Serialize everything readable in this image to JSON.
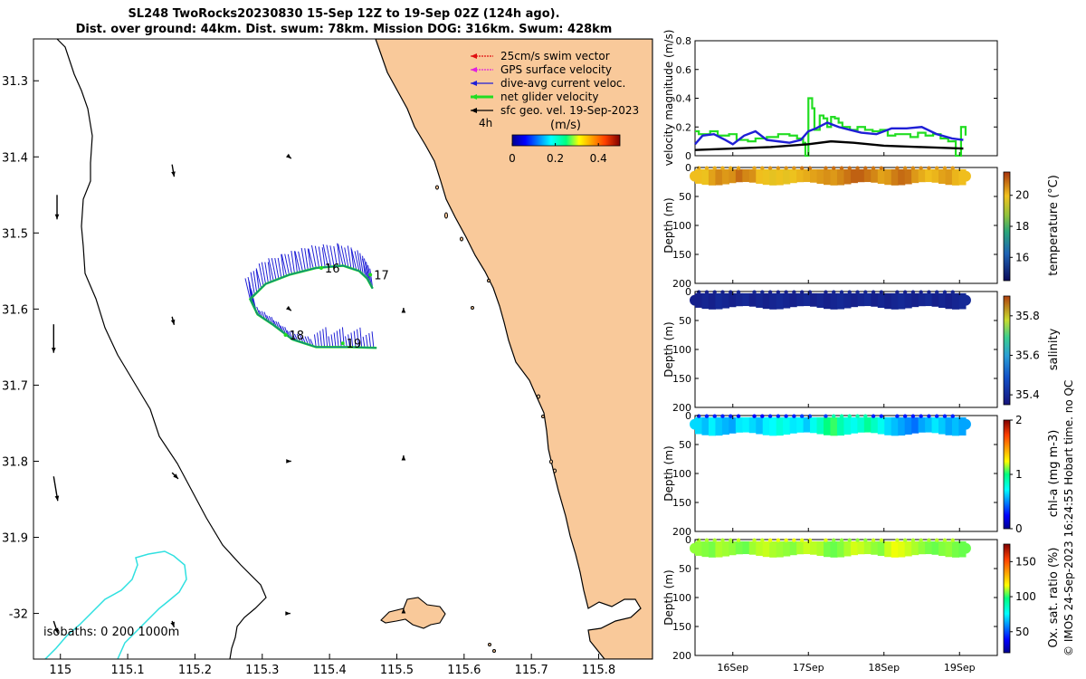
{
  "header": {
    "title_line1": "SL248 TwoRocks20230830 15-Sep 12Z to 19-Sep 02Z (124h ago).",
    "title_line2": "Dist. over ground: 44km. Dist. swum: 78km. Mission DOG: 316km. Swum: 428km"
  },
  "colors": {
    "land": "#f9c99a",
    "isobath_200": "#2fe0e0",
    "glider_track": "#22dd22",
    "current_arrow": "#1f1fd6",
    "swim_vector": "#e01010",
    "gps_velocity": "#e020e0"
  },
  "chart_data": [
    {
      "type": "map",
      "x_ticks": [
        "115",
        "115.1",
        "115.2",
        "115.3",
        "115.4",
        "115.5",
        "115.6",
        "115.7",
        "115.8"
      ],
      "y_ticks": [
        "31.3",
        "31.4",
        "31.5",
        "31.6",
        "31.7",
        "31.8",
        "31.9",
        "-32"
      ],
      "xlim": [
        114.96,
        115.88
      ],
      "ylim": [
        -32.06,
        -31.245
      ],
      "legend": [
        {
          "label": "25cm/s swim vector",
          "color": "#e01010"
        },
        {
          "label": "GPS surface velocity",
          "color": "#e020e0"
        },
        {
          "label": "dive-avg current veloc.",
          "color": "#1f1fd6"
        },
        {
          "label": "net glider velocity",
          "color": "#22dd22"
        },
        {
          "label": "sfc geo. vel. 19-Sep-2023",
          "color": "#000000"
        }
      ],
      "legend_note": "4h",
      "colorbar": {
        "label": "(m/s)",
        "ticks": [
          "0",
          "0.2",
          "0.4"
        ],
        "range": [
          0,
          0.5
        ]
      },
      "isobath_label": "isobaths: 0   200   1000m",
      "day_labels": [
        "16",
        "17",
        "18",
        "19"
      ],
      "track": [
        {
          "lon": 115.464,
          "lat": -31.573
        },
        {
          "lon": 115.456,
          "lat": -31.56
        },
        {
          "lon": 115.444,
          "lat": -31.55
        },
        {
          "lon": 115.42,
          "lat": -31.543
        },
        {
          "lon": 115.38,
          "lat": -31.546
        },
        {
          "lon": 115.34,
          "lat": -31.555
        },
        {
          "lon": 115.305,
          "lat": -31.567
        },
        {
          "lon": 115.282,
          "lat": -31.587
        },
        {
          "lon": 115.293,
          "lat": -31.607
        },
        {
          "lon": 115.315,
          "lat": -31.62
        },
        {
          "lon": 115.345,
          "lat": -31.64
        },
        {
          "lon": 115.38,
          "lat": -31.65
        },
        {
          "lon": 115.43,
          "lat": -31.65
        },
        {
          "lon": 115.47,
          "lat": -31.651
        }
      ],
      "day_positions": [
        {
          "lon": 115.393,
          "lat": -31.546
        },
        {
          "lon": 115.466,
          "lat": -31.555
        },
        {
          "lon": 115.34,
          "lat": -31.634
        },
        {
          "lon": 115.425,
          "lat": -31.645
        }
      ],
      "geo_arrows": [
        {
          "lon": 114.995,
          "lat": -31.45,
          "u": 0.0,
          "v": -0.6
        },
        {
          "lon": 114.99,
          "lat": -31.62,
          "u": 0.0,
          "v": -0.7
        },
        {
          "lon": 114.99,
          "lat": -31.82,
          "u": 0.1,
          "v": -0.6
        },
        {
          "lon": 114.99,
          "lat": -32.01,
          "u": 0.1,
          "v": -0.3
        },
        {
          "lon": 115.166,
          "lat": -31.41,
          "u": 0.05,
          "v": -0.3
        },
        {
          "lon": 115.166,
          "lat": -31.61,
          "u": 0.05,
          "v": -0.2
        },
        {
          "lon": 115.166,
          "lat": -31.815,
          "u": 0.15,
          "v": -0.15
        },
        {
          "lon": 115.166,
          "lat": -32.01,
          "u": 0.05,
          "v": -0.15
        },
        {
          "lon": 115.34,
          "lat": -31.4,
          "u": 0.05,
          "v": -0.04
        },
        {
          "lon": 115.34,
          "lat": -31.6,
          "u": 0.05,
          "v": -0.04
        },
        {
          "lon": 115.34,
          "lat": -31.8,
          "u": 0.05,
          "v": 0.0
        },
        {
          "lon": 115.34,
          "lat": -32.0,
          "u": 0.03,
          "v": 0.0
        },
        {
          "lon": 115.51,
          "lat": -31.6,
          "u": 0.0,
          "v": 0.03
        },
        {
          "lon": 115.51,
          "lat": -31.795,
          "u": 0.0,
          "v": 0.05
        },
        {
          "lon": 115.51,
          "lat": -31.995,
          "u": 0.0,
          "v": 0.03
        }
      ]
    },
    {
      "type": "line",
      "ylabel": "velocity magnitude (m/s)",
      "ylim": [
        0,
        0.8
      ],
      "y_ticks": [
        "0",
        "0.2",
        "0.4",
        "0.6",
        "0.8"
      ],
      "xlim": [
        15.5,
        19.5
      ],
      "series": [
        {
          "name": "net glider velocity",
          "color": "#22dd22",
          "step": true,
          "x": [
            15.5,
            15.55,
            15.7,
            15.8,
            15.95,
            16.05,
            16.2,
            16.3,
            16.45,
            16.6,
            16.75,
            16.85,
            16.93,
            16.96,
            17.0,
            17.05,
            17.08,
            17.15,
            17.2,
            17.25,
            17.3,
            17.35,
            17.4,
            17.45,
            17.55,
            17.65,
            17.75,
            17.85,
            17.95,
            18.05,
            18.15,
            18.25,
            18.35,
            18.45,
            18.55,
            18.65,
            18.75,
            18.85,
            18.95,
            19.02,
            19.08
          ],
          "y": [
            0.17,
            0.15,
            0.17,
            0.14,
            0.15,
            0.11,
            0.1,
            0.12,
            0.13,
            0.15,
            0.14,
            0.12,
            0.09,
            0.0,
            0.4,
            0.33,
            0.18,
            0.28,
            0.26,
            0.2,
            0.27,
            0.26,
            0.23,
            0.2,
            0.18,
            0.2,
            0.18,
            0.17,
            0.18,
            0.14,
            0.15,
            0.15,
            0.13,
            0.16,
            0.14,
            0.15,
            0.12,
            0.1,
            0.0,
            0.2,
            0.14
          ]
        },
        {
          "name": "dive-avg current veloc.",
          "color": "#1f1fd6",
          "step": false,
          "x": [
            15.5,
            15.6,
            15.75,
            15.9,
            16.0,
            16.15,
            16.3,
            16.45,
            16.6,
            16.75,
            16.9,
            17.0,
            17.1,
            17.25,
            17.4,
            17.55,
            17.7,
            17.9,
            18.1,
            18.3,
            18.5,
            18.7,
            18.9,
            19.05
          ],
          "y": [
            0.08,
            0.14,
            0.15,
            0.11,
            0.08,
            0.14,
            0.17,
            0.11,
            0.1,
            0.09,
            0.11,
            0.17,
            0.19,
            0.23,
            0.2,
            0.18,
            0.16,
            0.15,
            0.19,
            0.19,
            0.2,
            0.15,
            0.12,
            0.11
          ]
        },
        {
          "name": "sfc geo. vel.",
          "color": "#000000",
          "step": false,
          "x": [
            15.5,
            16.0,
            16.5,
            17.0,
            17.3,
            17.6,
            18.0,
            18.5,
            19.05
          ],
          "y": [
            0.04,
            0.05,
            0.06,
            0.08,
            0.1,
            0.09,
            0.07,
            0.06,
            0.05
          ]
        }
      ]
    },
    {
      "type": "heatmap",
      "ylabel": "Depth (m)",
      "ylim": [
        0,
        200
      ],
      "y_ticks": [
        "0",
        "50",
        "100",
        "150",
        "200"
      ],
      "clabel": "temperature (°C)",
      "c_ticks": [
        "16",
        "18",
        "20"
      ],
      "crange": [
        14.5,
        21.5
      ],
      "profile_values": [
        20.0,
        19.9,
        20.3,
        20.6,
        20.4,
        20.5,
        20.9,
        20.6,
        20.5,
        20.0,
        19.9,
        19.8,
        19.9,
        19.8,
        19.9,
        20.1,
        20.2,
        20.3,
        20.4,
        20.5,
        20.4,
        20.6,
        20.8,
        21.0,
        21.0,
        20.8,
        20.6,
        20.3,
        20.4,
        20.7,
        20.9,
        20.8,
        20.4,
        20.2,
        20.0,
        20.1,
        20.3,
        20.4,
        20.1,
        20.0
      ],
      "surface_values": [
        20.2,
        20.3,
        20.5,
        20.8,
        20.9,
        20.8,
        20.6,
        20.4
      ]
    },
    {
      "type": "heatmap",
      "ylabel": "Depth (m)",
      "ylim": [
        0,
        200
      ],
      "y_ticks": [
        "0",
        "50",
        "100",
        "150",
        "200"
      ],
      "clabel": "salinity",
      "c_ticks": [
        "35.4",
        "35.6",
        "35.8"
      ],
      "crange": [
        35.35,
        35.9
      ],
      "profile_values": [
        35.38,
        35.39,
        35.38,
        35.4,
        35.39,
        35.38,
        35.39,
        35.4,
        35.38,
        35.39,
        35.38,
        35.39,
        35.4,
        35.39,
        35.38,
        35.39,
        35.4,
        35.38,
        35.39,
        35.38,
        35.39,
        35.4,
        35.39,
        35.38,
        35.39,
        35.4,
        35.38,
        35.39,
        35.38,
        35.39,
        35.4,
        35.39,
        35.38,
        35.39,
        35.4,
        35.38,
        35.39,
        35.38,
        35.39,
        35.4
      ],
      "surface_values": [
        35.38,
        35.39,
        35.38,
        35.38,
        35.39,
        35.38,
        35.38,
        35.39
      ]
    },
    {
      "type": "heatmap",
      "ylabel": "Depth (m)",
      "ylim": [
        0,
        200
      ],
      "y_ticks": [
        "0",
        "50",
        "100",
        "150",
        "200"
      ],
      "clabel": "chl-a (mg m-3)",
      "c_ticks": [
        "0",
        "1",
        "2"
      ],
      "crange": [
        0,
        2
      ],
      "profile_values": [
        0.65,
        0.6,
        0.7,
        0.62,
        0.58,
        0.55,
        0.68,
        0.7,
        0.65,
        0.6,
        0.7,
        0.72,
        0.8,
        0.75,
        0.68,
        0.7,
        0.62,
        0.75,
        0.85,
        1.0,
        1.05,
        0.9,
        0.8,
        0.75,
        0.82,
        0.95,
        0.85,
        0.75,
        0.65,
        0.6,
        0.55,
        0.5,
        0.45,
        0.55,
        0.6,
        0.68,
        0.62,
        0.55,
        0.6,
        0.55
      ],
      "surface_values": [
        0.3,
        0.25,
        0.3,
        0.35,
        0.9,
        0.3,
        0.28,
        0.3
      ]
    },
    {
      "type": "heatmap",
      "ylabel": "Depth (m)",
      "ylim": [
        0,
        200
      ],
      "y_ticks": [
        "0",
        "50",
        "100",
        "150",
        "200"
      ],
      "clabel": "Ox. sat. ratio (%)",
      "c_ticks": [
        "50",
        "100",
        "150"
      ],
      "crange": [
        20,
        175
      ],
      "profile_values": [
        108,
        107,
        106,
        110,
        109,
        108,
        106,
        105,
        109,
        111,
        112,
        110,
        109,
        108,
        107,
        110,
        112,
        111,
        110,
        106,
        105,
        107,
        110,
        113,
        112,
        110,
        108,
        107,
        112,
        115,
        114,
        112,
        110,
        108,
        106,
        105,
        107,
        108,
        106,
        105
      ],
      "surface_values": [
        110,
        112,
        115,
        114,
        108,
        112,
        110,
        111
      ]
    }
  ],
  "time_axis": {
    "labels": [
      "16Sep",
      "17Sep",
      "18Sep",
      "19Sep"
    ],
    "values": [
      16,
      17,
      18,
      19
    ]
  },
  "footer": {
    "credit": "© IMOS 24-Sep-2023 16:24:55 Hobart time. no QC"
  }
}
